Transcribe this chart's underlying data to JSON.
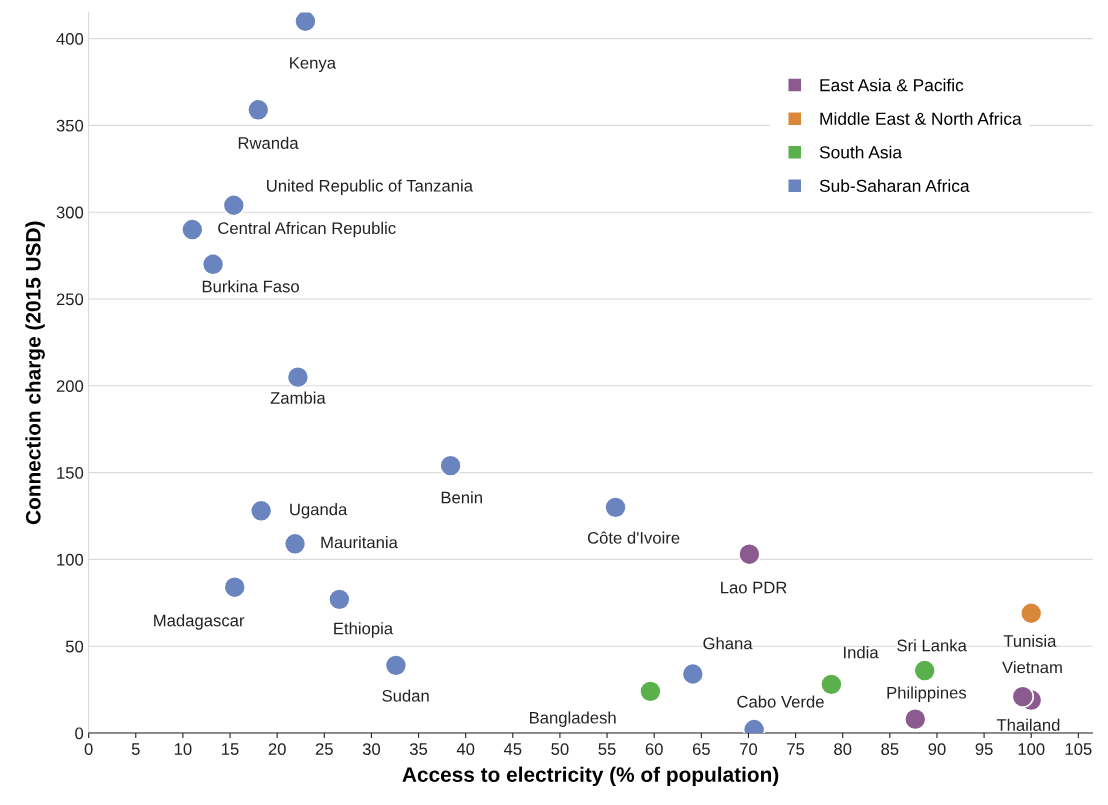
{
  "chart_data": {
    "type": "scatter",
    "xlabel": "Access to electricity (% of population)",
    "ylabel": "Connection charge (2015 USD)",
    "xlim": [
      0,
      106.5
    ],
    "xticks": [
      0,
      5,
      10,
      15,
      20,
      25,
      30,
      35,
      40,
      45,
      50,
      55,
      60,
      65,
      70,
      75,
      80,
      85,
      90,
      95,
      100,
      105
    ],
    "ylim": [
      0,
      415
    ],
    "yticks": [
      0,
      50,
      100,
      150,
      200,
      250,
      300,
      350,
      400
    ],
    "grid": "y",
    "legend": "top right",
    "marker": "circle",
    "series": [
      {
        "name": "East Asia & Pacific",
        "color": "#8b5a8f",
        "x": [
          70.1,
          87.7,
          100,
          99.1
        ],
        "values": [
          103,
          8,
          19,
          21
        ]
      },
      {
        "name": "Middle East & North Africa",
        "color": "#d9883a",
        "x": [
          100
        ],
        "values": [
          69
        ]
      },
      {
        "name": "South Asia",
        "color": "#5ab04b",
        "x": [
          59.6,
          78.8,
          88.7
        ],
        "values": [
          24,
          28,
          36
        ]
      },
      {
        "name": "Sub-Saharan Africa",
        "color": "#6a84c0",
        "x": [
          23.0,
          18.0,
          15.4,
          11.0,
          13.2,
          22.2,
          38.4,
          18.3,
          21.9,
          55.9,
          15.5,
          26.6,
          32.6,
          64.1,
          70.6
        ],
        "values": [
          410,
          359,
          304,
          290,
          270,
          205,
          154,
          128,
          109,
          130,
          84,
          77,
          39,
          34,
          2
        ]
      }
    ],
    "annotations": [
      {
        "text": "Kenya",
        "x": 23.0,
        "y": 410
      },
      {
        "text": "Rwanda",
        "x": 18.0,
        "y": 359
      },
      {
        "text": "United Republic of Tanzania",
        "x": 15.4,
        "y": 304
      },
      {
        "text": "Central African Republic",
        "x": 11.0,
        "y": 290
      },
      {
        "text": "Burkina Faso",
        "x": 13.2,
        "y": 270
      },
      {
        "text": "Zambia",
        "x": 22.2,
        "y": 205
      },
      {
        "text": "Benin",
        "x": 38.4,
        "y": 154
      },
      {
        "text": "Uganda",
        "x": 18.3,
        "y": 128
      },
      {
        "text": "Mauritania",
        "x": 21.9,
        "y": 109
      },
      {
        "text": "Côte d'Ivoire",
        "x": 55.9,
        "y": 130
      },
      {
        "text": "Madagascar",
        "x": 15.5,
        "y": 84
      },
      {
        "text": "Ethiopia",
        "x": 26.6,
        "y": 77
      },
      {
        "text": "Sudan",
        "x": 32.6,
        "y": 39
      },
      {
        "text": "Ghana",
        "x": 64.1,
        "y": 34
      },
      {
        "text": "Cabo Verde",
        "x": 70.6,
        "y": 2
      },
      {
        "text": "Lao PDR",
        "x": 70.1,
        "y": 103
      },
      {
        "text": "Philippines",
        "x": 87.7,
        "y": 8
      },
      {
        "text": "Vietnam",
        "x": 99.1,
        "y": 21
      },
      {
        "text": "Thailand",
        "x": 100,
        "y": 19
      },
      {
        "text": "Tunisia",
        "x": 100,
        "y": 69
      },
      {
        "text": "Bangladesh",
        "x": 59.6,
        "y": 24
      },
      {
        "text": "India",
        "x": 78.8,
        "y": 28
      },
      {
        "text": "Sri Lanka",
        "x": 88.7,
        "y": 36
      }
    ]
  }
}
